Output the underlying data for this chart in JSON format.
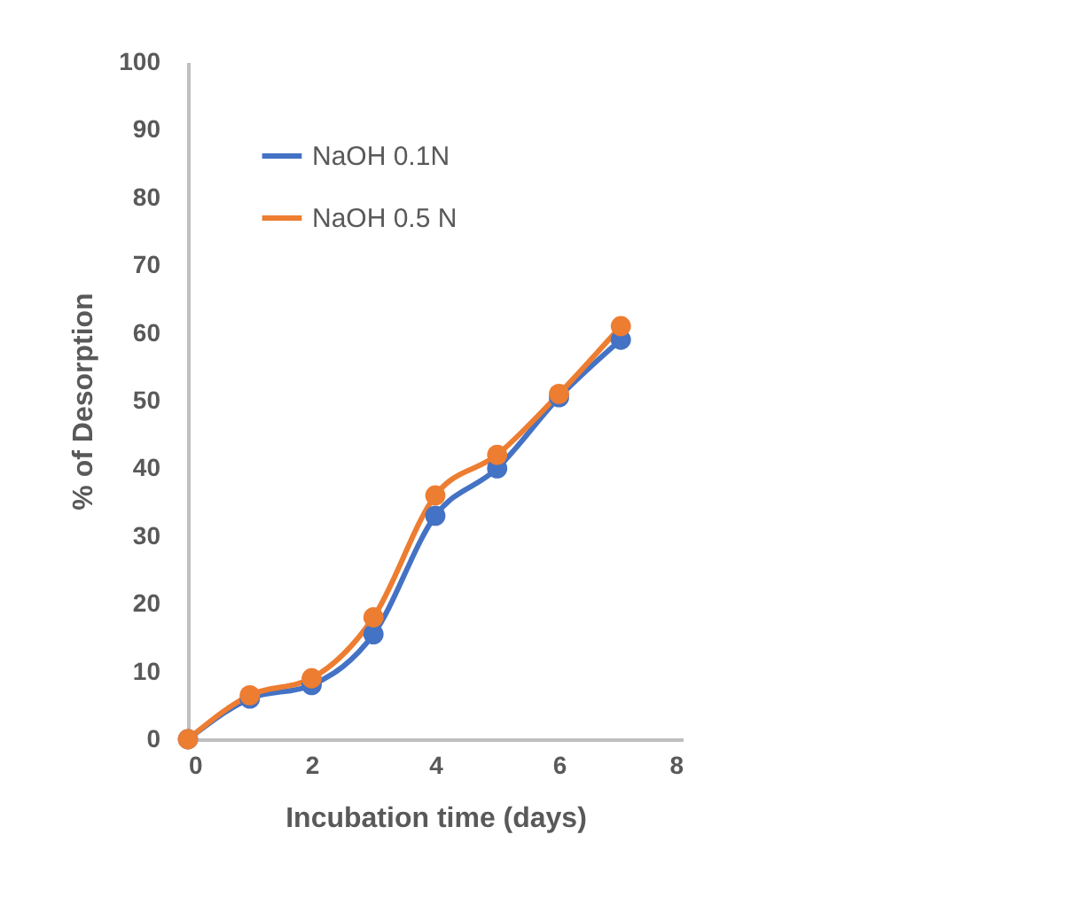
{
  "chart_data": {
    "type": "line",
    "xlabel": "Incubation time (days)",
    "ylabel": "% of Desorption",
    "x": [
      0,
      1,
      2,
      3,
      4,
      5,
      6,
      7
    ],
    "xlim": [
      0,
      8
    ],
    "xticks": [
      0,
      2,
      4,
      6,
      8
    ],
    "ylim": [
      0,
      100
    ],
    "yticks": [
      0,
      10,
      20,
      30,
      40,
      50,
      60,
      70,
      80,
      90,
      100
    ],
    "marker": "circle",
    "legend": "top left",
    "grid": false,
    "series": [
      {
        "name": "NaOH 0.1N",
        "color": "#4472c4",
        "values": [
          0,
          6,
          8,
          15.5,
          33,
          40,
          50.5,
          59
        ]
      },
      {
        "name": "NaOH 0.5 N",
        "color": "#ed7d31",
        "values": [
          0,
          6.5,
          9,
          18,
          36,
          42,
          51,
          61
        ]
      }
    ]
  }
}
